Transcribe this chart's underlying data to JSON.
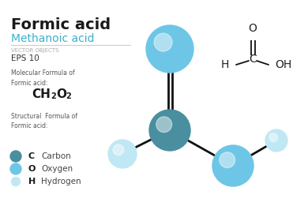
{
  "title": "Formic acid",
  "subtitle": "Methanoic acid",
  "tag_line1": "VECTOR OBJECTS",
  "tag_line2": "EPS 10",
  "mol_formula_label": "Molecular Formula of\nFormic acid:",
  "struct_formula_label": "Structural  Formula of\nFormic acid:",
  "legend": [
    {
      "symbol": "C",
      "label": "Carbon",
      "color": "#4a8fa0"
    },
    {
      "symbol": "O",
      "label": "Oxygen",
      "color": "#6ec6e6"
    },
    {
      "symbol": "H",
      "label": "Hydrogen",
      "color": "#c0e8f4"
    }
  ],
  "carbon_color": "#4a8fa0",
  "oxygen_color": "#6ec6e6",
  "hydrogen_color": "#c0e8f4",
  "bg_color": "#ffffff",
  "title_color": "#1a1a1a",
  "subtitle_color": "#3bb0cc",
  "text_color": "#555555",
  "bond_color": "#111111"
}
